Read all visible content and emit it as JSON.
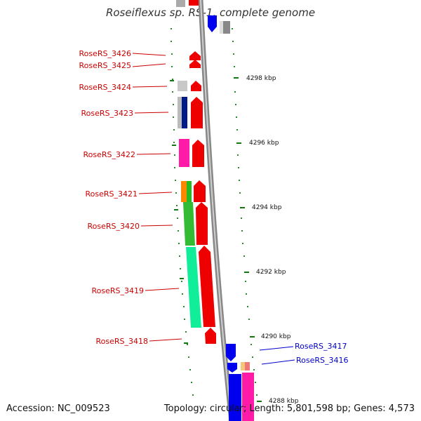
{
  "title": "Roseiflexus sp. RS-1, complete genome",
  "footer": {
    "accession": "Accession: NC_009523",
    "topology": "Topology: circular; Length: 5,801,598 bp; Genes: 4,573"
  },
  "colors": {
    "left_label": "#cc0000",
    "right_label": "#0000cc",
    "axis": "#777777",
    "tick": "#117711"
  },
  "ticks": [
    "4298 kbp",
    "4296 kbp",
    "4294 kbp",
    "4292 kbp",
    "4290 kbp",
    "4288 kbp"
  ],
  "left_genes": [
    "RoseRS_3426",
    "RoseRS_3425",
    "RoseRS_3424",
    "RoseRS_3423",
    "RoseRS_3422",
    "RoseRS_3421",
    "RoseRS_3420",
    "RoseRS_3419",
    "RoseRS_3418"
  ],
  "right_genes": [
    "RoseRS_3417",
    "RoseRS_3416"
  ]
}
